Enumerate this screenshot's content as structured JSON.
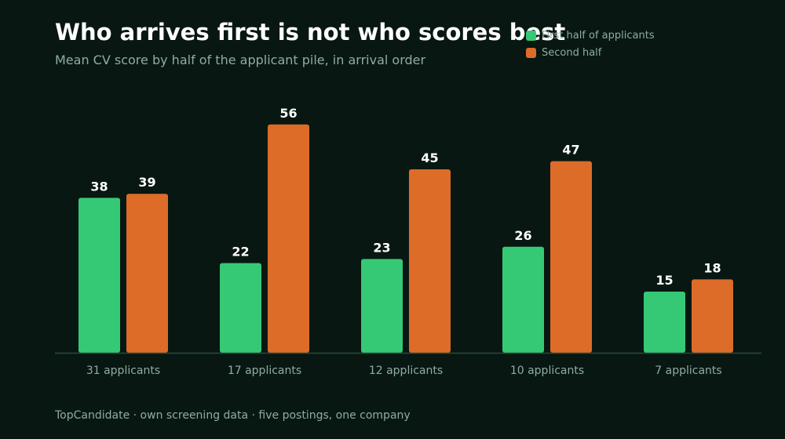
{
  "chart_data": {
    "type": "bar",
    "title": "Who arrives first is not who scores best",
    "subtitle": "Mean CV score by half of the applicant pile, in arrival order",
    "categories": [
      "31 applicants",
      "17 applicants",
      "12 applicants",
      "10 applicants",
      "7 applicants"
    ],
    "series": [
      {
        "name": "First half of applicants",
        "color": "#36c975",
        "values": [
          38,
          22,
          23,
          26,
          15
        ]
      },
      {
        "name": "Second half",
        "color": "#dd6c29",
        "values": [
          39,
          56,
          45,
          47,
          18
        ]
      }
    ],
    "ylim": [
      0,
      60
    ],
    "grid": false,
    "legend_position": "top-right",
    "footer": "TopCandidate · own screening data · five postings, one company"
  },
  "colors": {
    "background": "#081712",
    "axis": "#2b4a3c",
    "muted_text": "#8fae9f"
  }
}
